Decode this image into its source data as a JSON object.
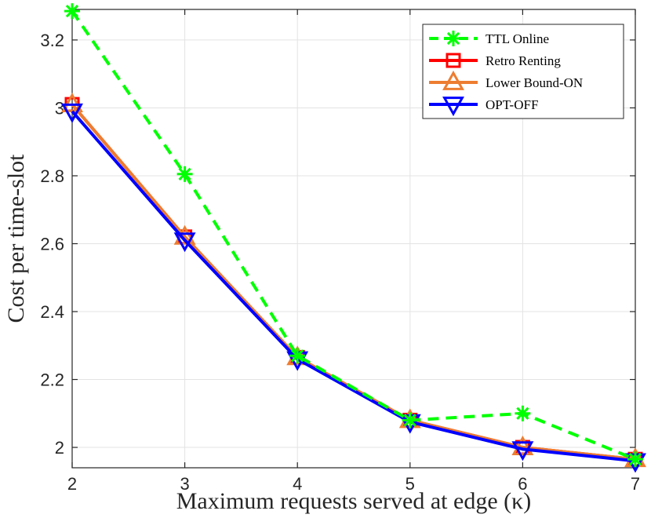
{
  "chart_data": {
    "type": "line",
    "xlabel": "Maximum requests served at edge (κ)",
    "ylabel": "Cost per time-slot",
    "x": [
      2,
      3,
      4,
      5,
      6,
      7
    ],
    "xlim": [
      2,
      7
    ],
    "ylim": [
      1.94,
      3.29
    ],
    "xticks": [
      "2",
      "3",
      "4",
      "5",
      "6",
      "7"
    ],
    "yticks": [
      2,
      2.2,
      2.4,
      2.6,
      2.8,
      3,
      3.2
    ],
    "ytick_labels": [
      "2",
      "2.2",
      "2.4",
      "2.6",
      "2.8",
      "3",
      "3.2"
    ],
    "grid": true,
    "legend_position": "top-right",
    "series": [
      {
        "name": "TTL Online",
        "color": "#00ff00",
        "dash": "dashed",
        "marker": "asterisk",
        "values": [
          3.285,
          2.805,
          2.27,
          2.08,
          2.1,
          1.965
        ]
      },
      {
        "name": "Retro Renting",
        "color": "#ff0000",
        "dash": "solid",
        "marker": "square",
        "values": [
          3.01,
          2.62,
          2.265,
          2.08,
          2.0,
          1.965
        ]
      },
      {
        "name": "Lower Bound-ON",
        "color": "#ed7d31",
        "dash": "solid",
        "marker": "triangle-up",
        "values": [
          3.01,
          2.62,
          2.265,
          2.08,
          2.0,
          1.965
        ]
      },
      {
        "name": "OPT-OFF",
        "color": "#0000ff",
        "dash": "solid",
        "marker": "triangle-down",
        "values": [
          2.99,
          2.61,
          2.26,
          2.075,
          1.995,
          1.96
        ]
      }
    ]
  }
}
